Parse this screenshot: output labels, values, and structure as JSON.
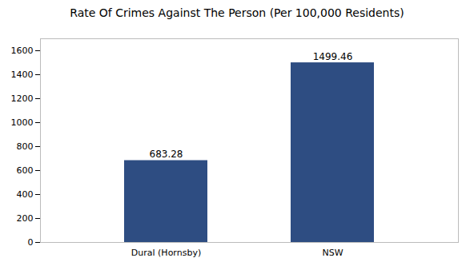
{
  "chart_data": {
    "type": "bar",
    "title": "Rate Of Crimes Against The Person (Per 100,000 Residents)",
    "categories": [
      "Dural (Hornsby)",
      "NSW"
    ],
    "values": [
      683.28,
      1499.46
    ],
    "color": "#2e4d82",
    "ylim": [
      0,
      1700
    ],
    "yticks": [
      0,
      200,
      400,
      600,
      800,
      1000,
      1200,
      1400,
      1600
    ],
    "grid": false,
    "data_labels": true
  }
}
